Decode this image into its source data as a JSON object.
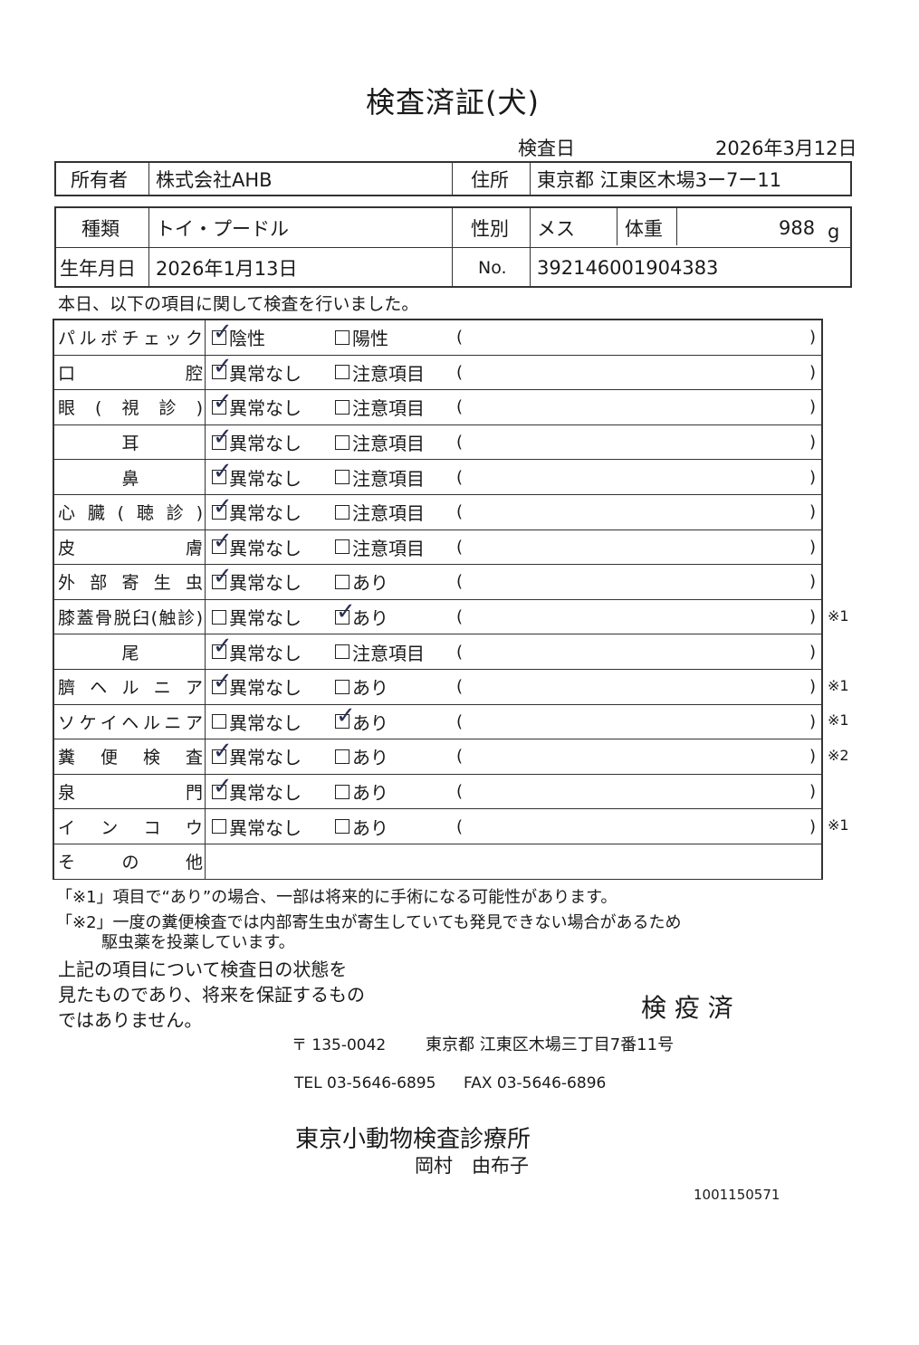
{
  "title": "検査済証(犬)",
  "exam_date_label": "検査日",
  "exam_date": "2026年3月12日",
  "owner": {
    "label": "所有者",
    "value": "株式会社AHB",
    "address_label": "住所",
    "address": "東京都 江東区木場3ー7ー11"
  },
  "pet": {
    "breed_label": "種類",
    "breed": "トイ・プードル",
    "sex_label": "性別",
    "sex": "メス",
    "weight_label": "体重",
    "weight": "988",
    "weight_unit": "g",
    "birth_label": "生年月日",
    "birth": "2026年1月13日",
    "no_label": "No.",
    "no": "392146001904383"
  },
  "intro": "本日、以下の項目に関して検査を行いました。",
  "items": [
    {
      "label": "パルボチェック",
      "opt1": "陰性",
      "opt2": "陽性",
      "checked": 1,
      "note": ""
    },
    {
      "label": "口腔",
      "opt1": "異常なし",
      "opt2": "注意項目",
      "checked": 1,
      "note": ""
    },
    {
      "label": "眼(視診)",
      "opt1": "異常なし",
      "opt2": "注意項目",
      "checked": 1,
      "note": ""
    },
    {
      "label": "耳",
      "opt1": "異常なし",
      "opt2": "注意項目",
      "checked": 1,
      "note": "",
      "center": true
    },
    {
      "label": "鼻",
      "opt1": "異常なし",
      "opt2": "注意項目",
      "checked": 1,
      "note": "",
      "center": true
    },
    {
      "label": "心臓(聴診)",
      "opt1": "異常なし",
      "opt2": "注意項目",
      "checked": 1,
      "note": ""
    },
    {
      "label": "皮膚",
      "opt1": "異常なし",
      "opt2": "注意項目",
      "checked": 1,
      "note": ""
    },
    {
      "label": "外部寄生虫",
      "opt1": "異常なし",
      "opt2": "あり",
      "checked": 1,
      "note": ""
    },
    {
      "label": "膝蓋骨脱臼(触診)",
      "opt1": "異常なし",
      "opt2": "あり",
      "checked": 2,
      "note": "※1"
    },
    {
      "label": "尾",
      "opt1": "異常なし",
      "opt2": "注意項目",
      "checked": 1,
      "note": "",
      "center": true
    },
    {
      "label": "臍ヘルニア",
      "opt1": "異常なし",
      "opt2": "あり",
      "checked": 1,
      "note": "※1"
    },
    {
      "label": "ソケイヘルニア",
      "opt1": "異常なし",
      "opt2": "あり",
      "checked": 2,
      "note": "※1"
    },
    {
      "label": "糞便検査",
      "opt1": "異常なし",
      "opt2": "あり",
      "checked": 1,
      "note": "※2"
    },
    {
      "label": "泉門",
      "opt1": "異常なし",
      "opt2": "あり",
      "checked": 1,
      "note": ""
    },
    {
      "label": "インコウ",
      "opt1": "異常なし",
      "opt2": "あり",
      "checked": 0,
      "note": "※1"
    },
    {
      "label": "その他",
      "opt1": "",
      "opt2": "",
      "checked": 0,
      "note": "",
      "other": true
    }
  ],
  "paren_open": "(",
  "paren_close": ")",
  "footnote1": "「※1」項目で“あり”の場合、一部は将来的に手術になる可能性があります。",
  "footnote2a": "「※2」一度の糞便検査では内部寄生虫が寄生していても発見できない場合があるため",
  "footnote2b": "駆虫薬を投薬しています。",
  "disclaimer": [
    "上記の項目について検査日の状態を",
    "見たものであり、将来を保証するもの",
    "ではありません。"
  ],
  "stamp": "検 疫 済",
  "clinic": {
    "postal": "〒 135-0042",
    "address": "東京都 江東区木場三丁目7番11号",
    "tel": "TEL 03-5646-6895",
    "fax": "FAX 03-5646-6896",
    "name": "東京小動物検査診療所",
    "doctor": "岡村　由布子"
  },
  "serial": "1001150571"
}
